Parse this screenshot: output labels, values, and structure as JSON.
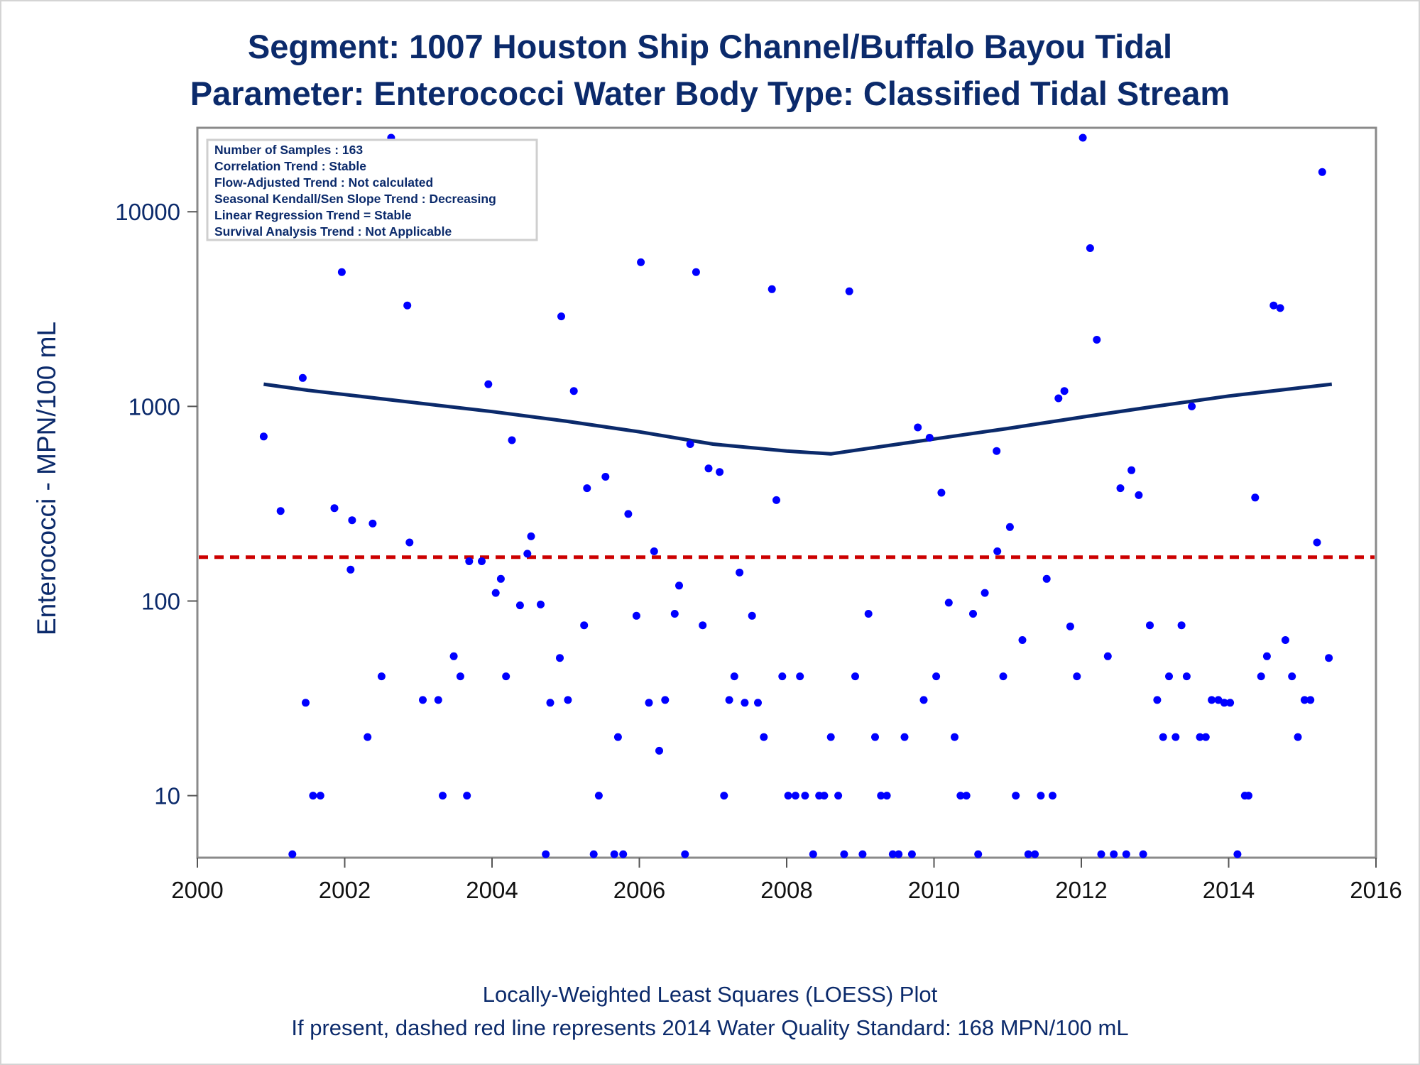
{
  "chart_data": {
    "type": "scatter",
    "title": "Segment: 1007  Houston Ship Channel/Buffalo Bayou Tidal",
    "subtitle": "Parameter: Enterococci   Water Body Type: Classified Tidal Stream",
    "xlabel": "",
    "ylabel": "Enterococci - MPN/100 mL",
    "y_scale": "log",
    "xlim": [
      2000,
      2016
    ],
    "ylim": [
      4.8,
      27000
    ],
    "x_ticks": [
      2000,
      2002,
      2004,
      2006,
      2008,
      2010,
      2012,
      2014,
      2016
    ],
    "y_ticks": [
      10,
      100,
      1000,
      10000
    ],
    "grid": false,
    "legend": "none",
    "info_box": {
      "position": "top-left",
      "lines": [
        "Number of Samples : 163",
        "Correlation Trend : Stable",
        "Flow-Adjusted Trend : Not calculated",
        "Seasonal Kendall/Sen Slope Trend : Decreasing",
        "Linear Regression Trend = Stable",
        "Survival Analysis Trend : Not Applicable"
      ]
    },
    "standard_line": {
      "y": 168,
      "style": "dashed",
      "color": "#cc0000"
    },
    "loess_curve": {
      "color": "#0b2a6b",
      "x": [
        2000.9,
        2001.5,
        2002.0,
        2003.0,
        2004.0,
        2005.0,
        2006.0,
        2007.0,
        2008.0,
        2008.6,
        2009.0,
        2010.0,
        2011.0,
        2012.0,
        2013.0,
        2014.0,
        2015.0,
        2015.4
      ],
      "y": [
        1300,
        1210,
        1150,
        1040,
        940,
        840,
        740,
        640,
        590,
        570,
        600,
        680,
        770,
        880,
        1000,
        1130,
        1250,
        1300
      ]
    },
    "series": [
      {
        "color": "#0000ff",
        "x": [
          2000.9,
          2001.13,
          2001.29,
          2001.43,
          2001.47,
          2001.57,
          2001.67,
          2001.86,
          2001.96,
          2002.08,
          2002.1,
          2002.31,
          2002.38,
          2002.5,
          2002.63,
          2002.85,
          2002.88,
          2003.06,
          2003.27,
          2003.33,
          2003.48,
          2003.57,
          2003.66,
          2003.69,
          2003.86,
          2003.95,
          2004.05,
          2004.12,
          2004.19,
          2004.27,
          2004.38,
          2004.48,
          2004.53,
          2004.66,
          2004.73,
          2004.79,
          2004.92,
          2004.94,
          2005.03,
          2005.11,
          2005.25,
          2005.29,
          2005.38,
          2005.45,
          2005.54,
          2005.66,
          2005.71,
          2005.78,
          2005.85,
          2005.96,
          2006.02,
          2006.13,
          2006.2,
          2006.27,
          2006.35,
          2006.48,
          2006.54,
          2006.62,
          2006.69,
          2006.77,
          2006.86,
          2006.94,
          2007.09,
          2007.15,
          2007.22,
          2007.29,
          2007.36,
          2007.43,
          2007.53,
          2007.61,
          2007.69,
          2007.8,
          2007.86,
          2007.94,
          2008.02,
          2008.12,
          2008.18,
          2008.25,
          2008.36,
          2008.44,
          2008.51,
          2008.6,
          2008.7,
          2008.78,
          2008.85,
          2008.93,
          2009.03,
          2009.11,
          2009.2,
          2009.28,
          2009.36,
          2009.44,
          2009.52,
          2009.6,
          2009.7,
          2009.78,
          2009.86,
          2009.94,
          2010.03,
          2010.1,
          2010.2,
          2010.28,
          2010.36,
          2010.44,
          2010.53,
          2010.6,
          2010.69,
          2010.85,
          2010.86,
          2010.94,
          2011.03,
          2011.11,
          2011.2,
          2011.28,
          2011.37,
          2011.45,
          2011.53,
          2011.61,
          2011.69,
          2011.77,
          2011.85,
          2011.94,
          2012.02,
          2012.12,
          2012.21,
          2012.27,
          2012.36,
          2012.44,
          2012.53,
          2012.61,
          2012.68,
          2012.78,
          2012.84,
          2012.93,
          2013.03,
          2013.11,
          2013.19,
          2013.28,
          2013.36,
          2013.43,
          2013.5,
          2013.61,
          2013.69,
          2013.77,
          2013.86,
          2013.94,
          2014.02,
          2014.12,
          2014.22,
          2014.27,
          2014.36,
          2014.44,
          2014.52,
          2014.61,
          2014.7,
          2014.77,
          2014.86,
          2014.94,
          2015.03,
          2015.11,
          2015.2,
          2015.27,
          2015.36
        ],
        "y": [
          700,
          290,
          5,
          1400,
          30,
          10,
          10,
          300,
          4900,
          145,
          260,
          20,
          250,
          41,
          24000,
          3300,
          200,
          31,
          31,
          10,
          52,
          41,
          10,
          160,
          160,
          1300,
          110,
          130,
          41,
          670,
          95,
          175,
          215,
          96,
          5,
          30,
          51,
          2900,
          31,
          1200,
          75,
          380,
          5,
          10,
          435,
          5,
          20,
          5,
          280,
          84,
          5500,
          30,
          180,
          17,
          31,
          86,
          120,
          5,
          640,
          4900,
          75,
          480,
          460,
          10,
          31,
          41,
          140,
          30,
          84,
          30,
          20,
          4000,
          330,
          41,
          10,
          10,
          41,
          10,
          5,
          10,
          10,
          20,
          10,
          5,
          3900,
          41,
          5,
          86,
          20,
          10,
          10,
          5,
          5,
          20,
          5,
          780,
          31,
          690,
          41,
          360,
          98,
          20,
          10,
          10,
          86,
          5,
          110,
          590,
          180,
          41,
          240,
          10,
          63,
          5,
          5,
          10,
          130,
          10,
          1100,
          1200,
          74,
          41,
          24000,
          6500,
          2200,
          5,
          52,
          5,
          380,
          5,
          470,
          350,
          5,
          75,
          31,
          20,
          41,
          20,
          75,
          41,
          1000,
          20,
          20,
          31,
          31,
          30,
          30,
          5,
          10,
          10,
          340,
          41,
          52,
          3300,
          3200,
          63,
          41,
          20,
          31,
          31,
          200,
          16000,
          51
        ]
      }
    ]
  },
  "footnotes": {
    "line1": "Locally-Weighted Least Squares (LOESS) Plot",
    "line2": "If present, dashed red line represents 2014 Water Quality Standard: 168 MPN/100 mL"
  }
}
